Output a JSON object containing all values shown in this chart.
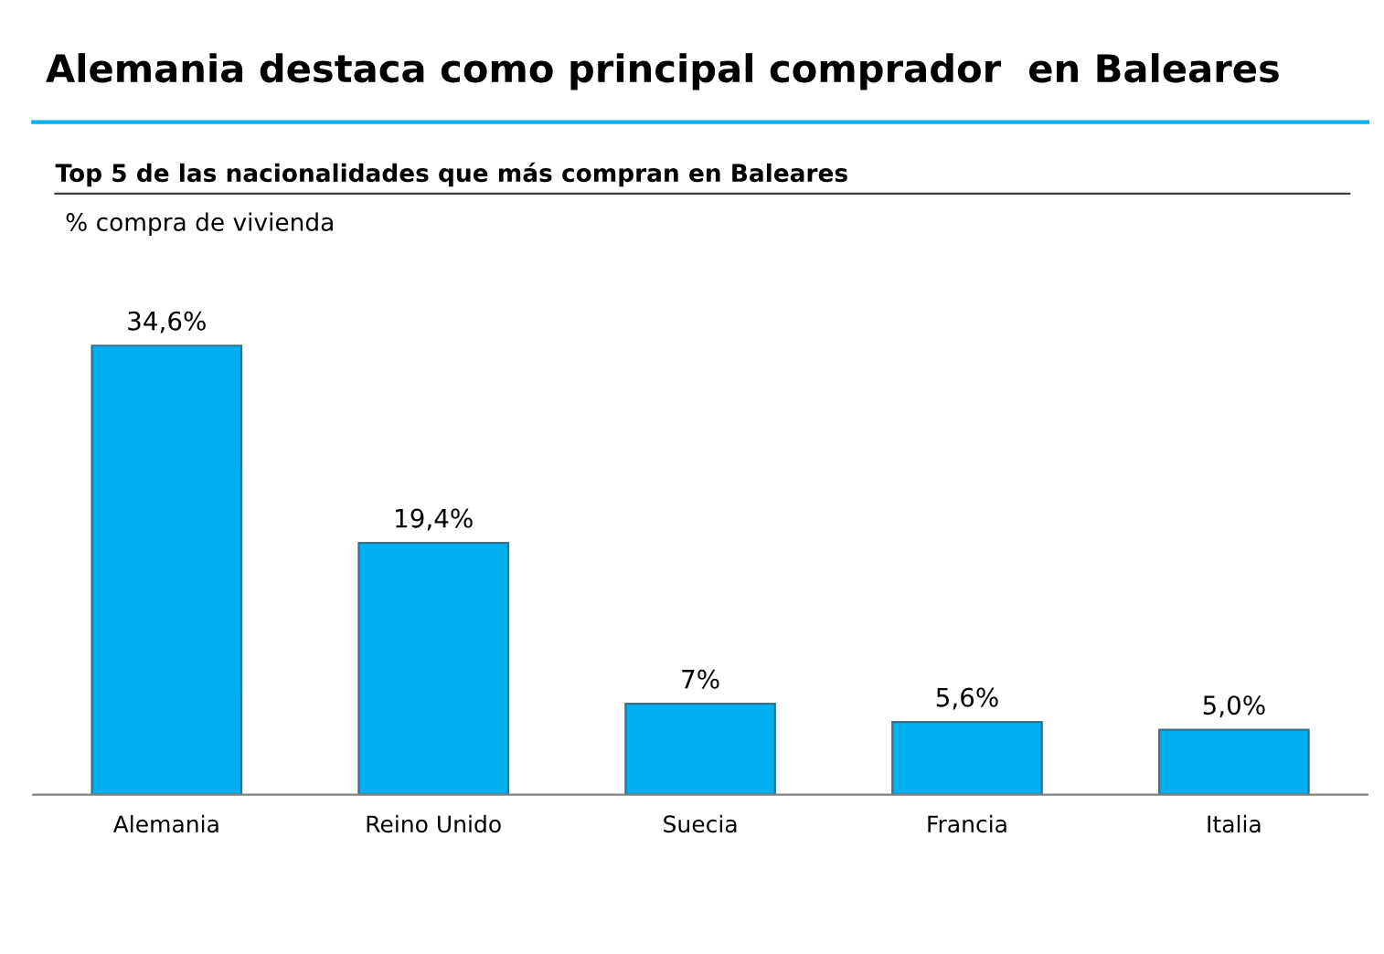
{
  "chart_data": {
    "type": "bar",
    "title": "Alemania destaca como principal comprador  en Baleares",
    "subtitle": "Top 5 de las nacionalidades que más compran en Baleares",
    "ylabel": "% compra de vivienda",
    "categories": [
      "Alemania",
      "Reino Unido",
      "Suecia",
      "Francia",
      "Italia"
    ],
    "values": [
      34.6,
      19.4,
      7,
      5.6,
      5.0
    ],
    "value_labels": [
      "34,6%",
      "19,4%",
      "7%",
      "5,6%",
      "5,0%"
    ],
    "color": "#00b0f0",
    "grid": false,
    "legend": false
  }
}
